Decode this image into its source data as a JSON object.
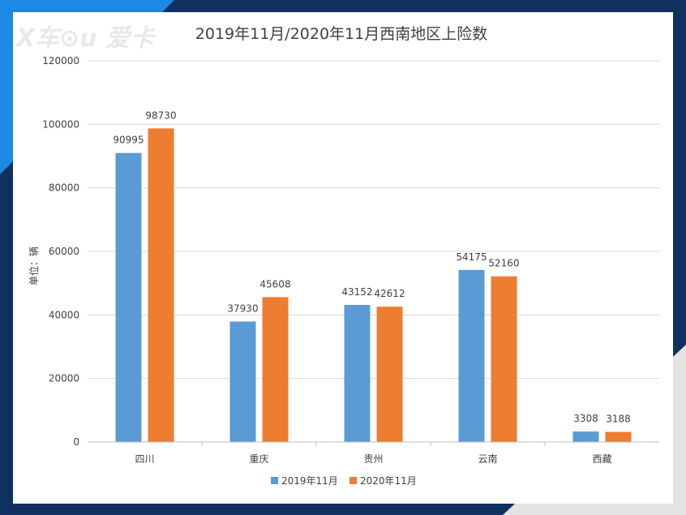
{
  "watermark": "X车⊙u 爱卡",
  "chart_data": {
    "type": "bar",
    "title": "2019年11月/2020年11月西南地区上险数",
    "ylabel": "单位：辆",
    "xlabel": "",
    "categories": [
      "四川",
      "重庆",
      "贵州",
      "云南",
      "西藏"
    ],
    "series": [
      {
        "name": "2019年11月",
        "color": "#5b9bd5",
        "values": [
          90995,
          37930,
          43152,
          54175,
          3308
        ]
      },
      {
        "name": "2020年11月",
        "color": "#ed7d31",
        "values": [
          98730,
          45608,
          42612,
          52160,
          3188
        ]
      }
    ],
    "ylim": [
      0,
      120000
    ],
    "yticks": [
      0,
      20000,
      40000,
      60000,
      80000,
      100000,
      120000
    ],
    "grid": true,
    "legend": "bottom",
    "colors": {
      "background_frame": "#10315f",
      "accent_blue": "#1e88e5",
      "panel": "#ffffff",
      "grid": "#d9d9d9"
    }
  }
}
